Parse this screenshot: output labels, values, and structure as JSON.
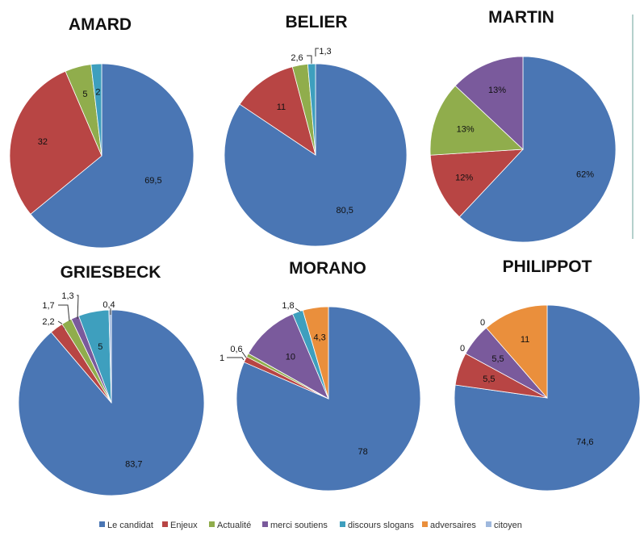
{
  "colors": {
    "Le candidat": "#4a76b4",
    "Enjeux": "#b84544",
    "Actualité": "#90ad4c",
    "merci soutiens": "#7a5a9c",
    "discours slogans": "#3e9fbe",
    "adversaires": "#ea8f3c",
    "citoyen": "#9fb8dd"
  },
  "legend": [
    "Le candidat",
    "Enjeux",
    "Actualité",
    "merci soutiens",
    "discours slogans",
    "adversaires",
    "citoyen"
  ],
  "chart_data": [
    {
      "type": "pie",
      "title": "AMARD",
      "start_angle": 0,
      "direction": "clockwise",
      "slices": [
        {
          "category": "Le candidat",
          "value": 69.5,
          "label": "69,5"
        },
        {
          "category": "Enjeux",
          "value": 32,
          "label": "32"
        },
        {
          "category": "Actualité",
          "value": 5,
          "label": "5"
        },
        {
          "category": "discours slogans",
          "value": 2,
          "label": "2"
        }
      ]
    },
    {
      "type": "pie",
      "title": "BELIER",
      "start_angle": 0,
      "direction": "clockwise",
      "slices": [
        {
          "category": "Le candidat",
          "value": 80.5,
          "label": "80,5"
        },
        {
          "category": "Enjeux",
          "value": 11,
          "label": "11"
        },
        {
          "category": "Actualité",
          "value": 2.6,
          "label": "2,6"
        },
        {
          "category": "discours slogans",
          "value": 1.3,
          "label": "1,3"
        }
      ]
    },
    {
      "type": "pie",
      "title": "MARTIN",
      "start_angle": 0,
      "direction": "clockwise",
      "slices": [
        {
          "category": "Le candidat",
          "value": 62,
          "label": "62%"
        },
        {
          "category": "Enjeux",
          "value": 12,
          "label": "12%"
        },
        {
          "category": "Actualité",
          "value": 13,
          "label": "13%"
        },
        {
          "category": "merci soutiens",
          "value": 13,
          "label": "13%"
        }
      ]
    },
    {
      "type": "pie",
      "title": "GRIESBECK",
      "start_angle": 0,
      "direction": "clockwise",
      "slices": [
        {
          "category": "Le candidat",
          "value": 83.7,
          "label": "83,7"
        },
        {
          "category": "Enjeux",
          "value": 2.2,
          "label": "2,2"
        },
        {
          "category": "Actualité",
          "value": 1.7,
          "label": "1,7"
        },
        {
          "category": "merci soutiens",
          "value": 1.3,
          "label": "1,3"
        },
        {
          "category": "discours slogans",
          "value": 5,
          "label": "5"
        },
        {
          "category": "citoyen",
          "value": 0.4,
          "label": "0,4"
        }
      ]
    },
    {
      "type": "pie",
      "title": "MORANO",
      "start_angle": 0,
      "direction": "clockwise",
      "slices": [
        {
          "category": "Le candidat",
          "value": 78,
          "label": "78"
        },
        {
          "category": "Enjeux",
          "value": 1,
          "label": "1"
        },
        {
          "category": "Actualité",
          "value": 0.6,
          "label": "0,6"
        },
        {
          "category": "merci soutiens",
          "value": 10,
          "label": "10"
        },
        {
          "category": "discours slogans",
          "value": 1.8,
          "label": "1,8"
        },
        {
          "category": "adversaires",
          "value": 4.3,
          "label": "4,3"
        }
      ]
    },
    {
      "type": "pie",
      "title": "PHILIPPOT",
      "start_angle": 0,
      "direction": "clockwise",
      "slices": [
        {
          "category": "Le candidat",
          "value": 74.6,
          "label": "74,6"
        },
        {
          "category": "Enjeux",
          "value": 5.5,
          "label": "5,5"
        },
        {
          "category": "Actualité",
          "value": 0,
          "label": "0"
        },
        {
          "category": "merci soutiens",
          "value": 5.5,
          "label": "5,5"
        },
        {
          "category": "discours slogans",
          "value": 0,
          "label": "0"
        },
        {
          "category": "adversaires",
          "value": 11,
          "label": "11"
        }
      ]
    }
  ]
}
